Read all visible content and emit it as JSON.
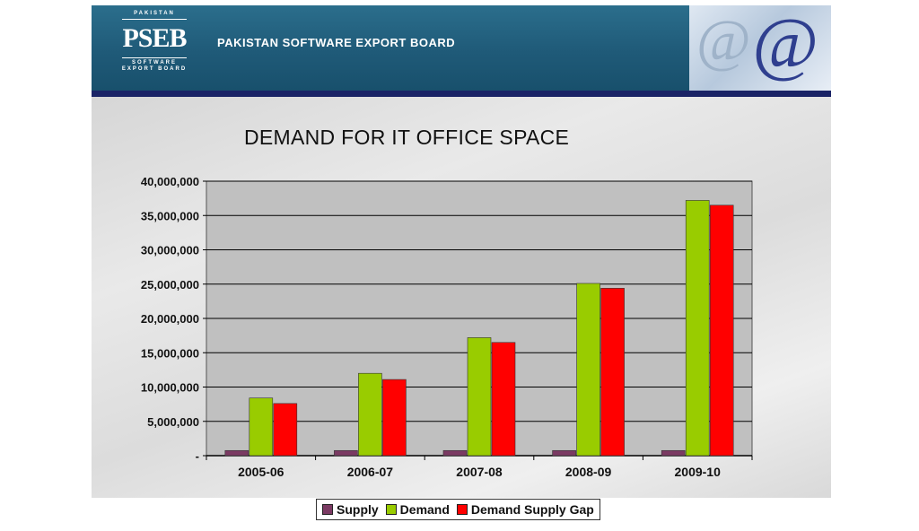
{
  "header": {
    "logo_top": "PAKISTAN",
    "logo_main": "PSEB",
    "logo_bottom_1": "SOFTWARE",
    "logo_bottom_2": "EXPORT BOARD",
    "org_name": "PAKISTAN SOFTWARE EXPORT BOARD",
    "decor_icon": "at-sign-icon",
    "color": "#1f5a78"
  },
  "chart_data": {
    "type": "bar",
    "title": "DEMAND FOR IT OFFICE SPACE",
    "categories": [
      "2005-06",
      "2006-07",
      "2007-08",
      "2008-09",
      "2009-10"
    ],
    "series": [
      {
        "name": "Supply",
        "color": "#7b3a63",
        "values": [
          750000,
          750000,
          750000,
          750000,
          750000
        ]
      },
      {
        "name": "Demand",
        "color": "#99cc00",
        "values": [
          8400000,
          12000000,
          17200000,
          25100000,
          37200000
        ]
      },
      {
        "name": "Demand Supply Gap",
        "color": "#ff0000",
        "values": [
          7600000,
          11100000,
          16500000,
          24400000,
          36500000
        ]
      }
    ],
    "yticks": [
      "-",
      "5,000,000",
      "10,000,000",
      "15,000,000",
      "20,000,000",
      "25,000,000",
      "30,000,000",
      "35,000,000",
      "40,000,000"
    ],
    "ylim": [
      0,
      40000000
    ],
    "grid": true,
    "legend": "bottom"
  }
}
